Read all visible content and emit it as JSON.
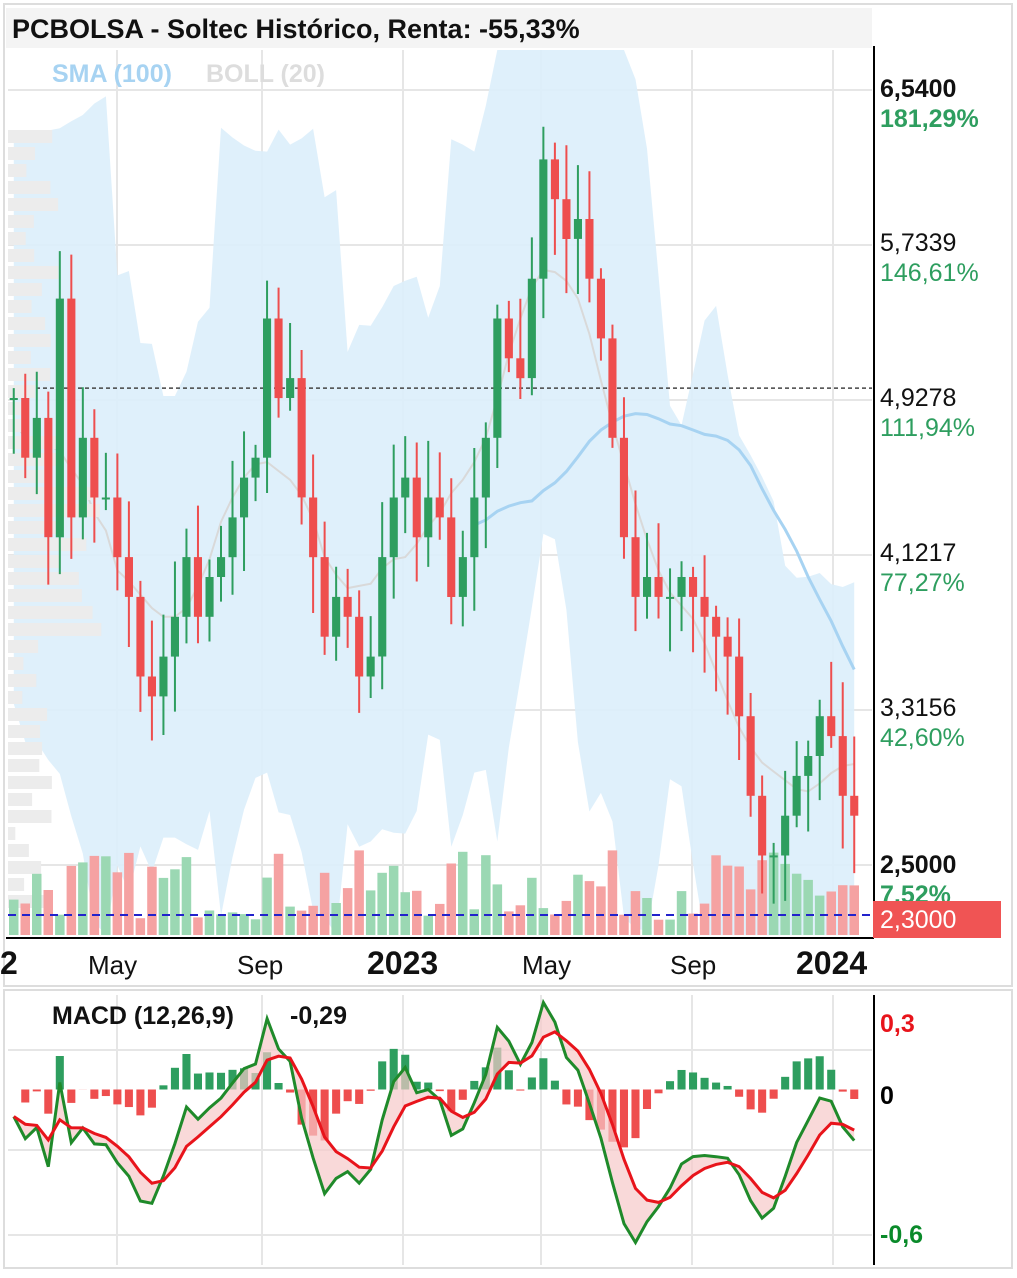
{
  "header": {
    "title": "PCBOLSA - Soltec Histórico, Renta: -55,33%",
    "indicator_sma": "SMA (100)",
    "indicator_boll": "BOLL (20)"
  },
  "price_axis": [
    {
      "price": "6,5400",
      "pct": "181,29%",
      "bold": true
    },
    {
      "price": "5,7339",
      "pct": "146,61%",
      "bold": false
    },
    {
      "price": "4,9278",
      "pct": "111,94%",
      "bold": false
    },
    {
      "price": "4,1217",
      "pct": "77,27%",
      "bold": false
    },
    {
      "price": "3,3156",
      "pct": "42,60%",
      "bold": false
    },
    {
      "price": "2,5000",
      "pct": "7,52%",
      "bold": true
    }
  ],
  "current_price_tag": "2,3000",
  "time_axis": [
    {
      "label": "2",
      "bold": true
    },
    {
      "label": "May",
      "bold": false
    },
    {
      "label": "Sep",
      "bold": false
    },
    {
      "label": "2023",
      "bold": true
    },
    {
      "label": "May",
      "bold": false
    },
    {
      "label": "Sep",
      "bold": false
    },
    {
      "label": "2024",
      "bold": true
    }
  ],
  "macd": {
    "label": "MACD (12,26,9)",
    "value": "-0,29",
    "axis": [
      {
        "label": "0,3",
        "color": "#e8141b"
      },
      {
        "label": "0",
        "color": "#000000"
      },
      {
        "label": "-0,6",
        "color": "#0a8a2a"
      }
    ]
  },
  "colors": {
    "up": "#2e9e5f",
    "down": "#ee4e4e",
    "boll_fill": "#dbeefb",
    "sma": "#a7d3f2",
    "tag": "#f05454"
  },
  "chart_data": [
    {
      "type": "candlestick",
      "title": "PCBOLSA - Soltec Histórico, Renta: -55,33%",
      "x_range": [
        "2022-01",
        "2024-01"
      ],
      "ylim": [
        2.3,
        6.75
      ],
      "reference_price": 5.05,
      "base_price": 2.3,
      "grid": true,
      "weekly_close_approx": [
        5.0,
        4.7,
        4.9,
        4.3,
        5.5,
        4.4,
        4.8,
        4.5,
        4.5,
        4.2,
        4.0,
        3.6,
        3.5,
        3.7,
        3.9,
        4.2,
        3.9,
        4.1,
        4.2,
        4.4,
        4.6,
        4.7,
        5.4,
        5.0,
        5.1,
        4.5,
        4.2,
        3.8,
        4.0,
        3.9,
        3.6,
        3.7,
        4.2,
        4.5,
        4.6,
        4.3,
        4.5,
        4.4,
        4.0,
        4.2,
        4.5,
        4.8,
        5.4,
        5.2,
        5.1,
        5.6,
        6.2,
        6.0,
        5.8,
        5.9,
        5.6,
        5.3,
        4.8,
        4.3,
        4.0,
        4.1,
        4.0,
        4.0,
        4.1,
        4.0,
        3.9,
        3.8,
        3.7,
        3.4,
        3.0,
        2.7,
        2.7,
        2.9,
        3.1,
        3.2,
        3.4,
        3.3,
        3.0,
        2.9
      ]
    },
    {
      "type": "line",
      "title": "MACD (12,26,9)",
      "ylim": [
        -0.6,
        0.3
      ],
      "current_value": -0.29
    }
  ]
}
